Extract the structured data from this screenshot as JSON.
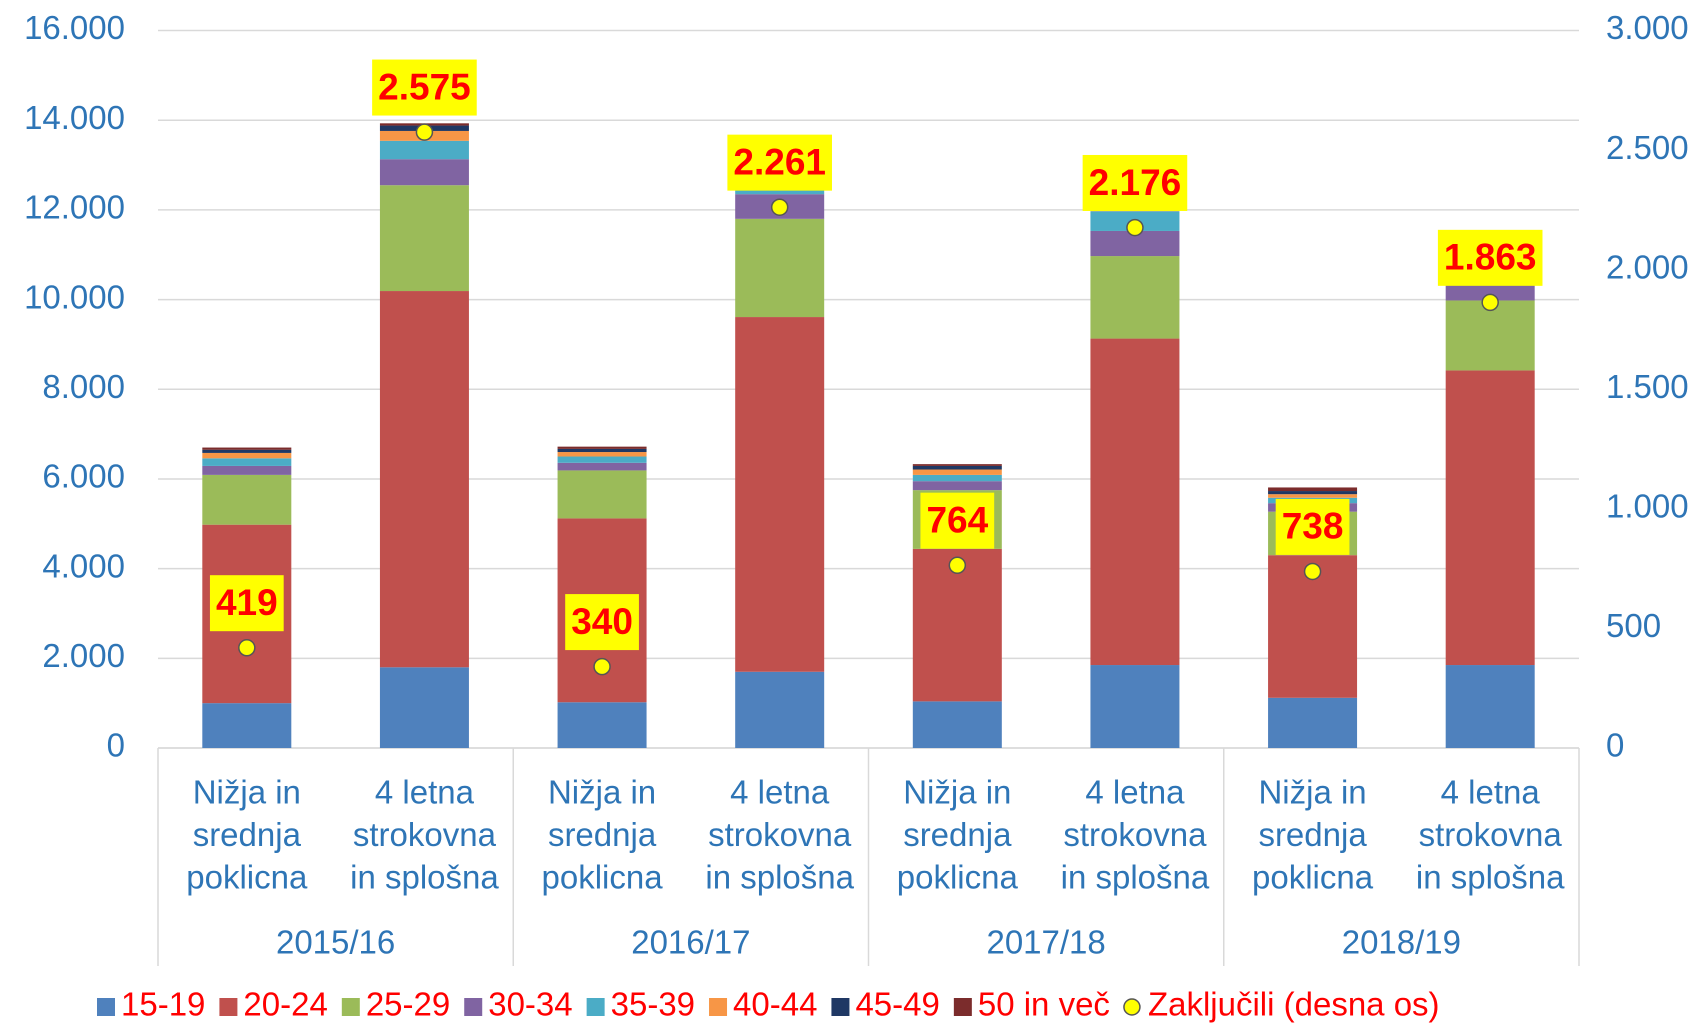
{
  "chart_data": {
    "type": "stacked_bar",
    "categories": [
      [
        "Nižja in",
        "srednja",
        "poklicna"
      ],
      [
        "4 letna",
        "strokovna",
        "in splošna"
      ],
      [
        "Nižja in",
        "srednja",
        "poklicna"
      ],
      [
        "4 letna",
        "strokovna",
        "in splošna"
      ],
      [
        "Nižja in",
        "srednja",
        "poklicna"
      ],
      [
        "4 letna",
        "strokovna",
        "in splošna"
      ],
      [
        "Nižja in",
        "srednja",
        "poklicna"
      ],
      [
        "4 letna",
        "strokovna",
        "in splošna"
      ]
    ],
    "groups": [
      "2015/16",
      "2016/17",
      "2017/18",
      "2018/19"
    ],
    "series": [
      {
        "name": "15-19",
        "color": "#4f81bd",
        "values": [
          1000,
          1800,
          1020,
          1700,
          1040,
          1850,
          1120,
          1850
        ]
      },
      {
        "name": "20-24",
        "color": "#c0504d",
        "values": [
          3980,
          8390,
          4100,
          7910,
          3400,
          7280,
          3180,
          6570
        ]
      },
      {
        "name": "25-29",
        "color": "#9bbb59",
        "values": [
          1110,
          2360,
          1070,
          2190,
          1310,
          1840,
          970,
          1560
        ]
      },
      {
        "name": "30-34",
        "color": "#8064a2",
        "values": [
          200,
          580,
          170,
          550,
          200,
          560,
          190,
          340
        ]
      },
      {
        "name": "35-39",
        "color": "#4bacc6",
        "values": [
          170,
          410,
          140,
          100,
          140,
          440,
          120,
          60
        ]
      },
      {
        "name": "40-44",
        "color": "#f79646",
        "values": [
          120,
          220,
          100,
          30,
          120,
          80,
          80,
          20
        ]
      },
      {
        "name": "45-49",
        "color": "#1f3864",
        "values": [
          70,
          120,
          70,
          20,
          80,
          40,
          70,
          10
        ]
      },
      {
        "name": "50 in več",
        "color": "#7b2c2c",
        "values": [
          50,
          50,
          50,
          10,
          40,
          20,
          80,
          10
        ]
      },
      {
        "name": "Zaključili (desna os)",
        "color": "#ffff00",
        "axis": "y2",
        "type": "scatter",
        "values": [
          419,
          2575,
          340,
          2261,
          764,
          2176,
          738,
          1863
        ],
        "value_labels": [
          "419",
          "2.575",
          "340",
          "2.261",
          "764",
          "2.176",
          "738",
          "1.863"
        ]
      }
    ],
    "ylim": [
      0,
      16000
    ],
    "yticks": [
      0,
      {
        "value": 2000,
        "label": "2.000"
      },
      {
        "value": 4000,
        "label": "4.000"
      },
      {
        "value": 6000,
        "label": "6.000"
      },
      {
        "value": 8000,
        "label": "8.000"
      },
      {
        "value": 10000,
        "label": "10.000"
      },
      {
        "value": 12000,
        "label": "12.000"
      },
      {
        "value": 14000,
        "label": "14.000"
      },
      {
        "value": 16000,
        "label": "16.000"
      }
    ],
    "y2lim": [
      0,
      3000
    ],
    "y2ticks": [
      0,
      500,
      {
        "value": 1000,
        "label": "1.000"
      },
      {
        "value": 1500,
        "label": "1.500"
      },
      {
        "value": 2000,
        "label": "2.000"
      },
      {
        "value": 2500,
        "label": "2.500"
      },
      {
        "value": 3000,
        "label": "3.000"
      }
    ],
    "grid": true,
    "legend": "bottom"
  }
}
